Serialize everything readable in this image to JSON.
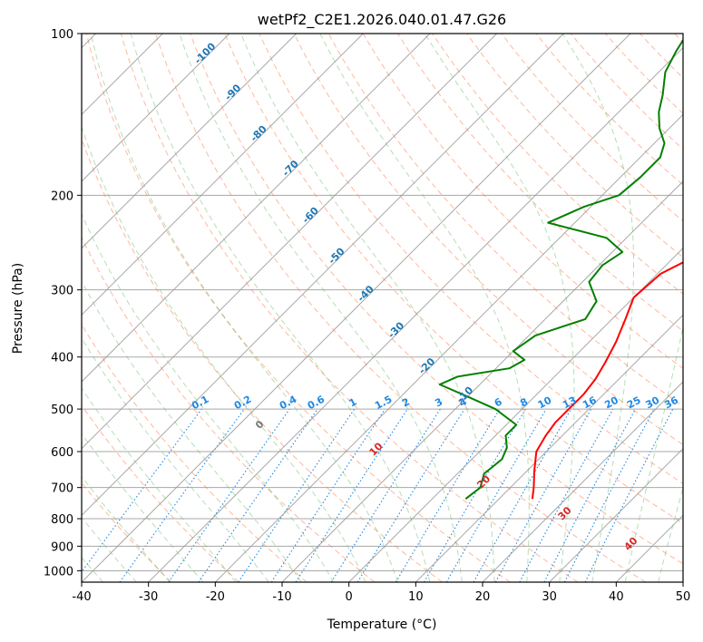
{
  "chart_data": {
    "type": "line",
    "title": "wetPf2_C2E1.2026.040.01.47.G26",
    "xlabel": "Temperature (°C)",
    "ylabel": "Pressure (hPa)",
    "xlim": [
      -40,
      50
    ],
    "ylim": [
      1050,
      100
    ],
    "y_scale": "log",
    "x_ticks": [
      -40,
      -30,
      -20,
      -10,
      0,
      10,
      20,
      30,
      40,
      50
    ],
    "y_ticks": [
      100,
      200,
      300,
      400,
      500,
      600,
      700,
      800,
      900,
      1000
    ],
    "grid": true,
    "skew": "45-degree skewed isotherms",
    "series": [
      {
        "color": "#ff0000",
        "points": [
          [
            15.0,
            735
          ],
          [
            13.5,
            700
          ],
          [
            11.0,
            650
          ],
          [
            8.5,
            600
          ],
          [
            7.5,
            560
          ],
          [
            7.0,
            530
          ],
          [
            7.0,
            500
          ],
          [
            7.0,
            470
          ],
          [
            6.5,
            440
          ],
          [
            5.5,
            410
          ],
          [
            4.0,
            375
          ],
          [
            2.0,
            340
          ],
          [
            0.0,
            310
          ],
          [
            0.5,
            280
          ],
          [
            3.0,
            260
          ],
          [
            6.5,
            245
          ],
          [
            9.5,
            230
          ],
          [
            10.5,
            220
          ],
          [
            9.5,
            205
          ],
          [
            8.5,
            190
          ],
          [
            9.0,
            175
          ],
          [
            10.5,
            160
          ],
          [
            12.0,
            145
          ],
          [
            12.0,
            130
          ],
          [
            12.5,
            115
          ],
          [
            13.5,
            105
          ],
          [
            14.0,
            100
          ]
        ]
      },
      {
        "color": "#008000",
        "points": [
          [
            5.0,
            735
          ],
          [
            5.5,
            700
          ],
          [
            4.0,
            660
          ],
          [
            4.5,
            620
          ],
          [
            3.5,
            590
          ],
          [
            1.5,
            560
          ],
          [
            1.5,
            535
          ],
          [
            -4.0,
            500
          ],
          [
            -11.0,
            470
          ],
          [
            -16.0,
            450
          ],
          [
            -14.5,
            435
          ],
          [
            -8.0,
            420
          ],
          [
            -7.0,
            405
          ],
          [
            -10.0,
            390
          ],
          [
            -9.0,
            365
          ],
          [
            -4.0,
            340
          ],
          [
            -5.0,
            315
          ],
          [
            -9.0,
            290
          ],
          [
            -9.5,
            270
          ],
          [
            -8.5,
            255
          ],
          [
            -13.0,
            240
          ],
          [
            -24.0,
            225
          ],
          [
            -21.0,
            210
          ],
          [
            -17.5,
            200
          ],
          [
            -17.0,
            185
          ],
          [
            -17.0,
            170
          ],
          [
            -18.5,
            160
          ],
          [
            -21.5,
            150
          ],
          [
            -24.0,
            140
          ],
          [
            -26.0,
            130
          ],
          [
            -29.0,
            118
          ],
          [
            -30.5,
            108
          ],
          [
            -31.5,
            100
          ]
        ]
      }
    ],
    "isotherm_labels": [
      {
        "value": -100,
        "p": 110
      },
      {
        "value": -90,
        "p": 130
      },
      {
        "value": -80,
        "p": 155
      },
      {
        "value": -70,
        "p": 180
      },
      {
        "value": -60,
        "p": 220
      },
      {
        "value": -50,
        "p": 262
      },
      {
        "value": -40,
        "p": 308
      },
      {
        "value": -30,
        "p": 360
      },
      {
        "value": -20,
        "p": 420
      },
      {
        "value": -10,
        "p": 475
      }
    ],
    "mixing_ratio_labels": [
      "0.1",
      "0.2",
      "0.4",
      "0.6",
      "1",
      "1.5",
      "2",
      "3",
      "4",
      "6",
      "8",
      "10",
      "13",
      "16",
      "20",
      "25",
      "30",
      "36"
    ],
    "moist_adiabat_labels": [
      "0",
      "10",
      "20",
      "30",
      "40"
    ]
  }
}
